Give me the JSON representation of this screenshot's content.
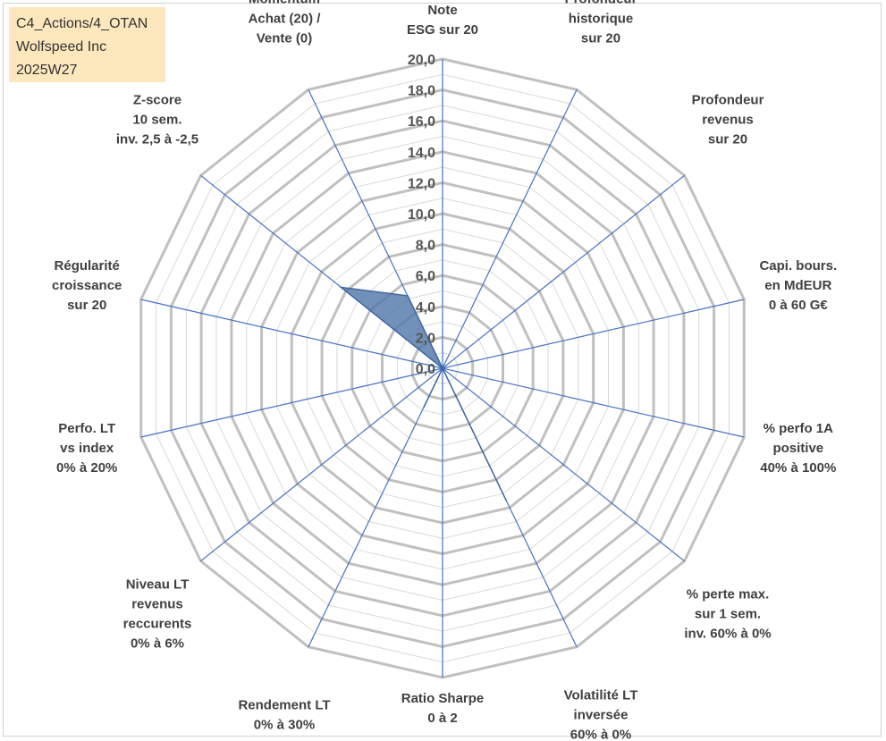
{
  "info": {
    "line1": "C4_Actions/4_OTAN",
    "line2": "Wolfspeed Inc",
    "line3": "2025W27"
  },
  "chart_data": {
    "type": "radar",
    "title": "",
    "rmin": 0,
    "rmax": 20,
    "tick_step": 2,
    "minor_step": 1,
    "tick_labels": [
      "0,0",
      "2,0",
      "4,0",
      "6,0",
      "8,0",
      "10,0",
      "12,0",
      "14,0",
      "16,0",
      "18,0",
      "20,0"
    ],
    "axes": [
      {
        "lines": [
          "Note",
          "ESG sur 20"
        ],
        "value": 0
      },
      {
        "lines": [
          "Profondeur",
          "historique",
          "sur 20"
        ],
        "value": 0
      },
      {
        "lines": [
          "Profondeur",
          "revenus",
          "sur 20"
        ],
        "value": 0
      },
      {
        "lines": [
          "Capi. bours.",
          "en MdEUR",
          "0 à 60 G€"
        ],
        "value": 0
      },
      {
        "lines": [
          "% perfo 1A",
          "positive",
          "40% à 100%"
        ],
        "value": 0
      },
      {
        "lines": [
          "% perte max.",
          "sur 1 sem.",
          "inv. 60% à 0%"
        ],
        "value": 0
      },
      {
        "lines": [
          "Volatilité LT",
          "inversée",
          "60% à 0%"
        ],
        "value": 9.5
      },
      {
        "lines": [
          "Ratio Sharpe",
          "0 à 2"
        ],
        "value": 0
      },
      {
        "lines": [
          "Rendement LT",
          "0% à 30%"
        ],
        "value": 2.8
      },
      {
        "lines": [
          "Niveau LT",
          "revenus",
          "reccurents",
          "0% à 6%"
        ],
        "value": 0
      },
      {
        "lines": [
          "Perfo. LT",
          "vs index",
          "0% à 20%"
        ],
        "value": 0
      },
      {
        "lines": [
          "Régularité",
          "croissance",
          "sur 20"
        ],
        "value": 0
      },
      {
        "lines": [
          "Z-score",
          "10 sem.",
          "inv. 2,5 à -2,5"
        ],
        "value": 8.4
      },
      {
        "lines": [
          "Momentum",
          "Achat (20) /",
          "Vente (0)"
        ],
        "value": 5.2
      }
    ],
    "series": [
      {
        "values": [
          0,
          0,
          0,
          0,
          0,
          0,
          9.5,
          0,
          2.8,
          0,
          0,
          0,
          8.4,
          5.2
        ],
        "color": "#4f76a8"
      }
    ],
    "grid": true,
    "legend": "none"
  }
}
